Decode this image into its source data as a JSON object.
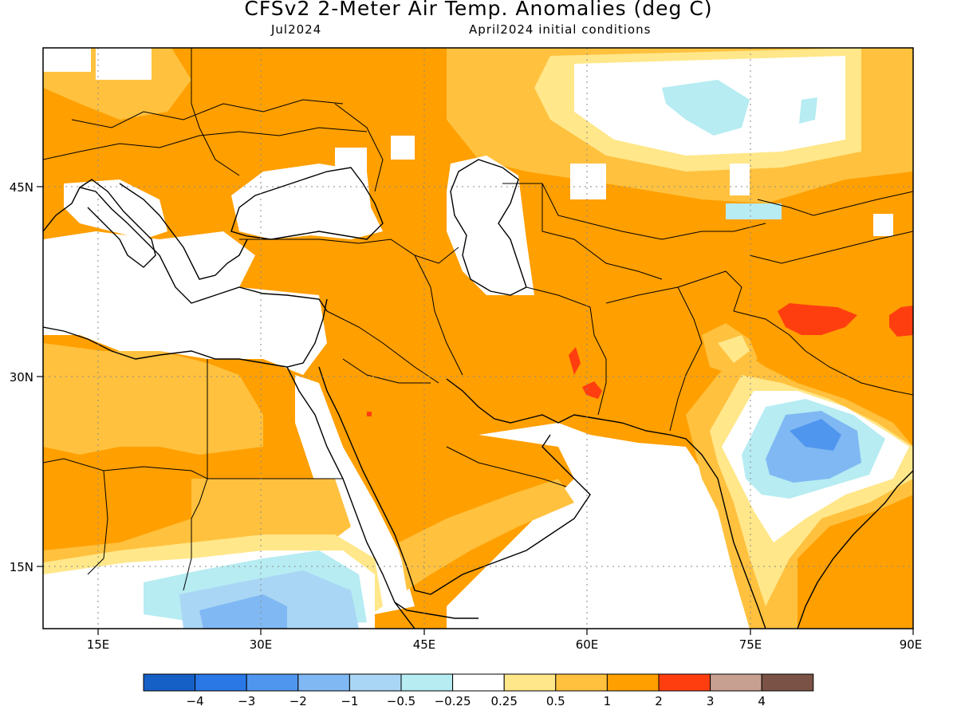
{
  "header": {
    "title": "CFSv2 2-Meter Air Temp. Anomalies (deg C)",
    "target_month": "Jul2024",
    "init": "April2024 initial conditions"
  },
  "map": {
    "lon_range": [
      10,
      90
    ],
    "lat_range": [
      9,
      56
    ],
    "x_ticks": [
      "15E",
      "30E",
      "45E",
      "60E",
      "75E",
      "90E"
    ],
    "y_ticks": [
      "45N",
      "30N",
      "15N"
    ]
  },
  "colorbar": {
    "labels": [
      "-4",
      "-3",
      "-2",
      "-1",
      "-0.5",
      "-0.25",
      "0.25",
      "0.5",
      "1",
      "2",
      "3",
      "4"
    ],
    "colors": [
      "#1560c6",
      "#2a78e6",
      "#4f96ef",
      "#80b8f3",
      "#a9d6f5",
      "#b6ecf2",
      "#ffffff",
      "#ffe78a",
      "#ffc13e",
      "#ff9f00",
      "#ff3e10",
      "#c7a091",
      "#7a5346"
    ]
  }
}
